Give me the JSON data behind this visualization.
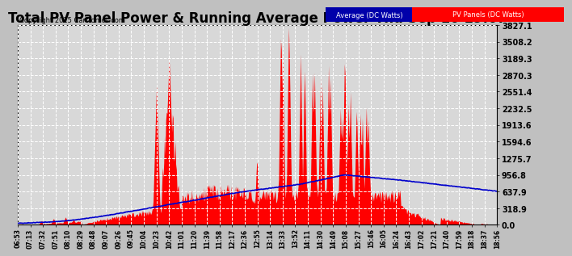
{
  "title": "Total PV Panel Power & Running Average Power Thu Sep 10 19:07",
  "copyright": "Copyright 2015 Cartronics.com",
  "legend_avg": "Average (DC Watts)",
  "legend_pv": "PV Panels (DC Watts)",
  "y_max": 3827.1,
  "y_ticks": [
    0.0,
    318.9,
    637.9,
    956.8,
    1275.7,
    1594.6,
    1913.6,
    2232.5,
    2551.4,
    2870.3,
    3189.3,
    3508.2,
    3827.1
  ],
  "plot_bg": "#d8d8d8",
  "fig_bg": "#c0c0c0",
  "grid_color": "#ffffff",
  "pv_color": "#ff0000",
  "avg_color": "#0000cc",
  "title_fontsize": 12,
  "time_labels": [
    "06:53",
    "07:13",
    "07:32",
    "07:51",
    "08:10",
    "08:29",
    "08:48",
    "09:07",
    "09:26",
    "09:45",
    "10:04",
    "10:23",
    "10:42",
    "11:01",
    "11:20",
    "11:39",
    "11:58",
    "12:17",
    "12:36",
    "12:55",
    "13:14",
    "13:33",
    "13:52",
    "14:11",
    "14:30",
    "14:49",
    "15:08",
    "15:27",
    "15:46",
    "16:05",
    "16:24",
    "16:43",
    "17:02",
    "17:21",
    "17:40",
    "17:59",
    "18:18",
    "18:37",
    "18:56"
  ],
  "legend_avg_bg": "#0000aa",
  "legend_pv_bg": "#ff0000"
}
